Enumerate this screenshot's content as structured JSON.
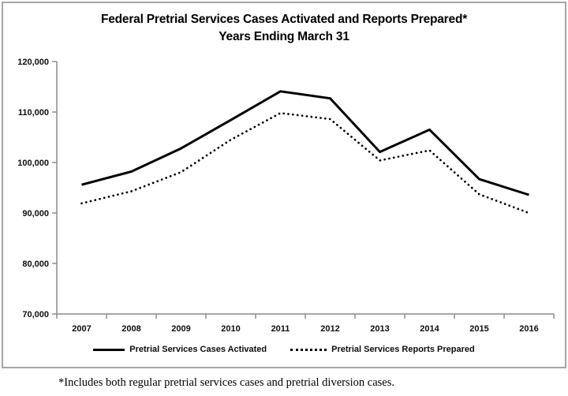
{
  "chart_data": {
    "type": "line",
    "title": "Federal Pretrial Services Cases Activated and Reports Prepared*",
    "subtitle": "Years Ending March 31",
    "categories": [
      "2007",
      "2008",
      "2009",
      "2010",
      "2011",
      "2012",
      "2013",
      "2014",
      "2015",
      "2016"
    ],
    "series": [
      {
        "name": "Pretrial Services Cases Activated",
        "style": "solid",
        "values": [
          95600,
          98200,
          102800,
          108400,
          114100,
          112700,
          102100,
          106500,
          96700,
          93600
        ]
      },
      {
        "name": "Pretrial Services Reports Prepared",
        "style": "dotted",
        "values": [
          91900,
          94300,
          98100,
          104500,
          109800,
          108600,
          100400,
          102400,
          93700,
          90000
        ]
      }
    ],
    "ylim": [
      70000,
      120000
    ],
    "ytick_step": 10000,
    "ytick_labels": [
      "70,000",
      "80,000",
      "90,000",
      "100,000",
      "110,000",
      "120,000"
    ],
    "grid": false,
    "legend_position": "bottom",
    "colors": {
      "line": "#000000",
      "axis": "#8c8c8c",
      "text": "#0d0d0d",
      "border": "#a6a6a6",
      "background": "#ffffff"
    }
  },
  "footnote": "*Includes both regular pretrial services cases and pretrial diversion cases."
}
